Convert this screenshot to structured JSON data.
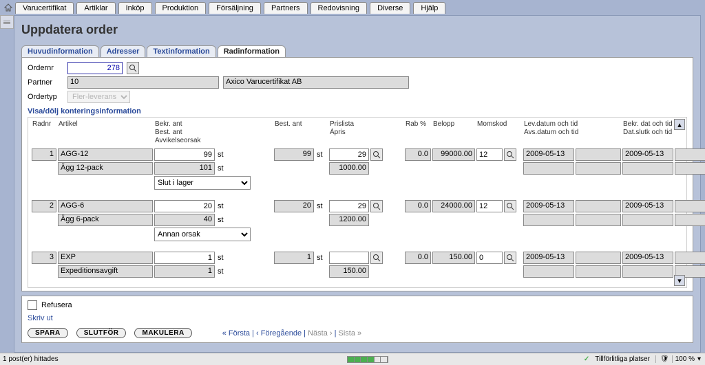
{
  "menu": [
    "Varucertifikat",
    "Artiklar",
    "Inköp",
    "Produktion",
    "Försäljning",
    "Partners",
    "Redovisning",
    "Diverse",
    "Hjälp"
  ],
  "page_title": "Uppdatera order",
  "tabs": {
    "t0": "Huvudinformation",
    "t1": "Adresser",
    "t2": "Textinformation",
    "t3": "Radinformation"
  },
  "form": {
    "ordernr_label": "Ordernr",
    "ordernr_value": "278",
    "partner_label": "Partner",
    "partner_code": "10",
    "partner_name": "Axico Varucertifikat AB",
    "ordertyp_label": "Ordertyp",
    "ordertyp_value": "Fler-leverans"
  },
  "section_link": "Visa/dölj konteringsinformation",
  "headers": {
    "radnr": "Radnr",
    "artikel": "Artikel",
    "bekr_best_avv": "Bekr. ant\nBest. ant\nAvvikelseorsak",
    "best_ant": "Best. ant",
    "pris": "Prislista\nÁpris",
    "rab": "Rab %",
    "belopp": "Belopp",
    "momskod": "Momskod",
    "lev": "Lev.datum och tid\nAvs.datum och tid",
    "bekr": "Bekr. dat och tid\nDat.slutk och tid"
  },
  "rows": [
    {
      "nr": "1",
      "art": "AGG-12",
      "desc": "Ägg 12-pack",
      "bekr": "99",
      "best": "101",
      "unit": "st",
      "best_ant": "99",
      "pris": "29",
      "apris": "1000.00",
      "rab": "0.0",
      "belopp": "99000.00",
      "moms": "12",
      "lev1": "2009-05-13",
      "bekr1": "2009-05-13",
      "avv": "Slut i lager"
    },
    {
      "nr": "2",
      "art": "AGG-6",
      "desc": "Ägg 6-pack",
      "bekr": "20",
      "best": "40",
      "unit": "st",
      "best_ant": "20",
      "pris": "29",
      "apris": "1200.00",
      "rab": "0.0",
      "belopp": "24000.00",
      "moms": "12",
      "lev1": "2009-05-13",
      "bekr1": "2009-05-13",
      "avv": "Annan orsak"
    },
    {
      "nr": "3",
      "art": "EXP",
      "desc": "Expeditionsavgift",
      "bekr": "1",
      "best": "1",
      "unit": "st",
      "best_ant": "1",
      "pris": "",
      "apris": "150.00",
      "rab": "0.0",
      "belopp": "150.00",
      "moms": "0",
      "lev1": "2009-05-13",
      "bekr1": "2009-05-13",
      "avv": ""
    }
  ],
  "refusera": "Refusera",
  "skriv_ut": "Skriv ut",
  "actions": {
    "spara": "SPARA",
    "slutfor": "SLUTFÖR",
    "makulera": "MAKULERA"
  },
  "nav": {
    "first": "« Första",
    "prev": "‹ Föregående",
    "next": "Nästa ›",
    "last": "Sista »",
    "sep": " | "
  },
  "status": {
    "left": "1 post(er) hittades",
    "trusted": "Tillförlitliga platser",
    "zoom": "100 %"
  }
}
